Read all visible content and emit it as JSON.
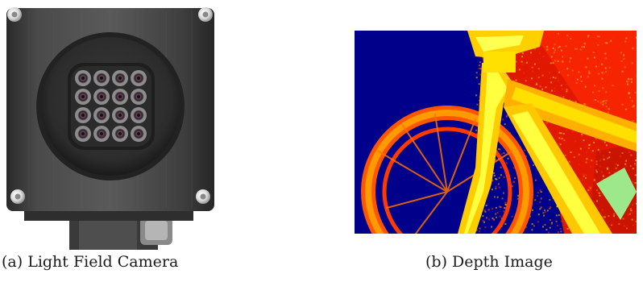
{
  "figure": {
    "subfigure_a": {
      "label": "(a)",
      "caption": "Light Field Camera",
      "lens_grid": {
        "rows": 4,
        "cols": 4
      }
    },
    "subfigure_b": {
      "label": "(b)",
      "caption": "Depth Image",
      "colormap": [
        "#00008b",
        "#ff2a00",
        "#ff8800",
        "#ffd000",
        "#ffff30",
        "#9ce88a"
      ]
    }
  }
}
